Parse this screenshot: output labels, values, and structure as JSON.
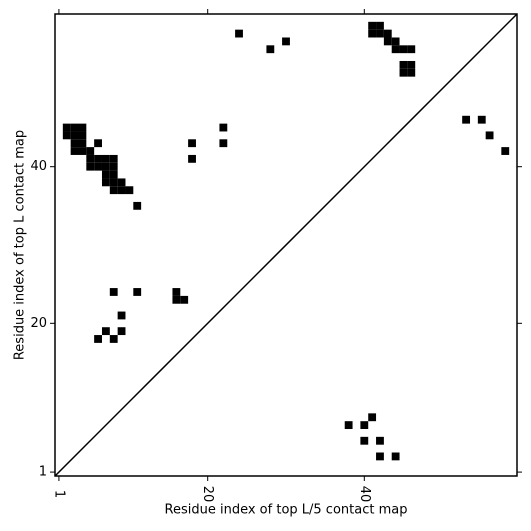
{
  "chart_data": {
    "type": "scatter",
    "xlabel": "Residue index of top L/5 contact map",
    "ylabel": "Residue index of top L contact map",
    "xlim": [
      0.5,
      59.5
    ],
    "ylim": [
      0.5,
      59.5
    ],
    "xticks": [
      1,
      20,
      40
    ],
    "yticks": [
      1,
      20,
      40
    ],
    "series": [
      {
        "color": "#000000",
        "x": [
          24,
          28,
          30,
          41,
          41,
          42,
          42,
          43,
          43,
          44,
          44,
          45,
          46,
          45,
          45,
          46,
          46,
          53,
          55,
          56,
          58,
          22,
          22,
          18,
          18,
          11,
          6,
          2,
          2,
          3,
          3,
          3,
          3,
          4,
          4,
          4,
          4,
          5,
          5,
          6,
          7,
          8,
          5,
          6,
          7,
          8,
          7,
          8,
          7,
          8,
          9,
          8,
          9,
          10,
          8,
          11,
          16,
          16,
          17,
          9,
          7,
          9,
          6,
          8
        ],
        "values": [
          57,
          55,
          56,
          57,
          58,
          57,
          58,
          57,
          56,
          56,
          55,
          55,
          55,
          52,
          53,
          52,
          53,
          46,
          46,
          44,
          42,
          45,
          43,
          43,
          41,
          35,
          43,
          45,
          44,
          44,
          43,
          42,
          45,
          45,
          44,
          43,
          42,
          42,
          41,
          41,
          41,
          41,
          40,
          40,
          40,
          40,
          39,
          39,
          38,
          38,
          38,
          37,
          37,
          37,
          24,
          24,
          24,
          23,
          23,
          21,
          19,
          19,
          18,
          18
        ]
      },
      {
        "color": "#000000",
        "x": [
          41,
          38,
          40,
          40,
          42,
          42,
          44
        ],
        "values": [
          8,
          7,
          7,
          5,
          5,
          3,
          3
        ]
      }
    ]
  }
}
